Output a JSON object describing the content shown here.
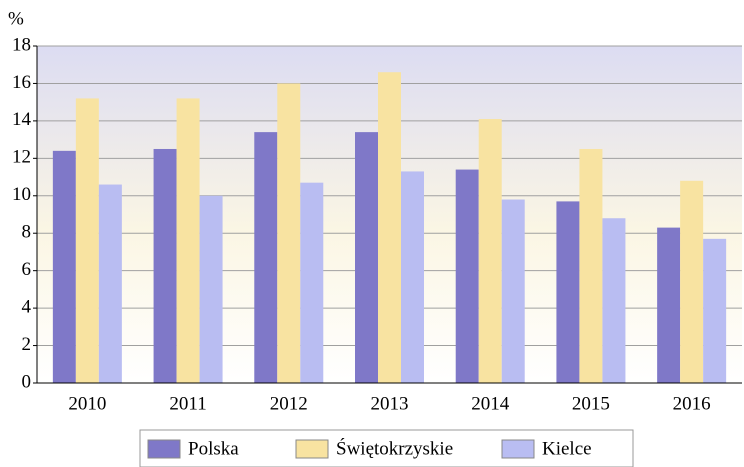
{
  "chart_data": {
    "type": "bar",
    "y_label": "%",
    "categories": [
      "2010",
      "2011",
      "2012",
      "2013",
      "2014",
      "2015",
      "2016"
    ],
    "series": [
      {
        "name": "Polska",
        "color": "#7f78c8",
        "values": [
          12.4,
          12.5,
          13.4,
          13.4,
          11.4,
          9.7,
          8.3
        ]
      },
      {
        "name": "Świętokrzyskie",
        "color": "#f8e3a1",
        "values": [
          15.2,
          15.2,
          16.0,
          16.6,
          14.1,
          12.5,
          10.8
        ]
      },
      {
        "name": "Kielce",
        "color": "#b9bdf2",
        "values": [
          10.6,
          10.0,
          10.7,
          11.3,
          9.8,
          8.8,
          7.7
        ]
      }
    ],
    "ylim": [
      0,
      18
    ],
    "yticks": [
      0,
      2,
      4,
      6,
      8,
      10,
      12,
      14,
      16,
      18
    ],
    "grid": true
  }
}
